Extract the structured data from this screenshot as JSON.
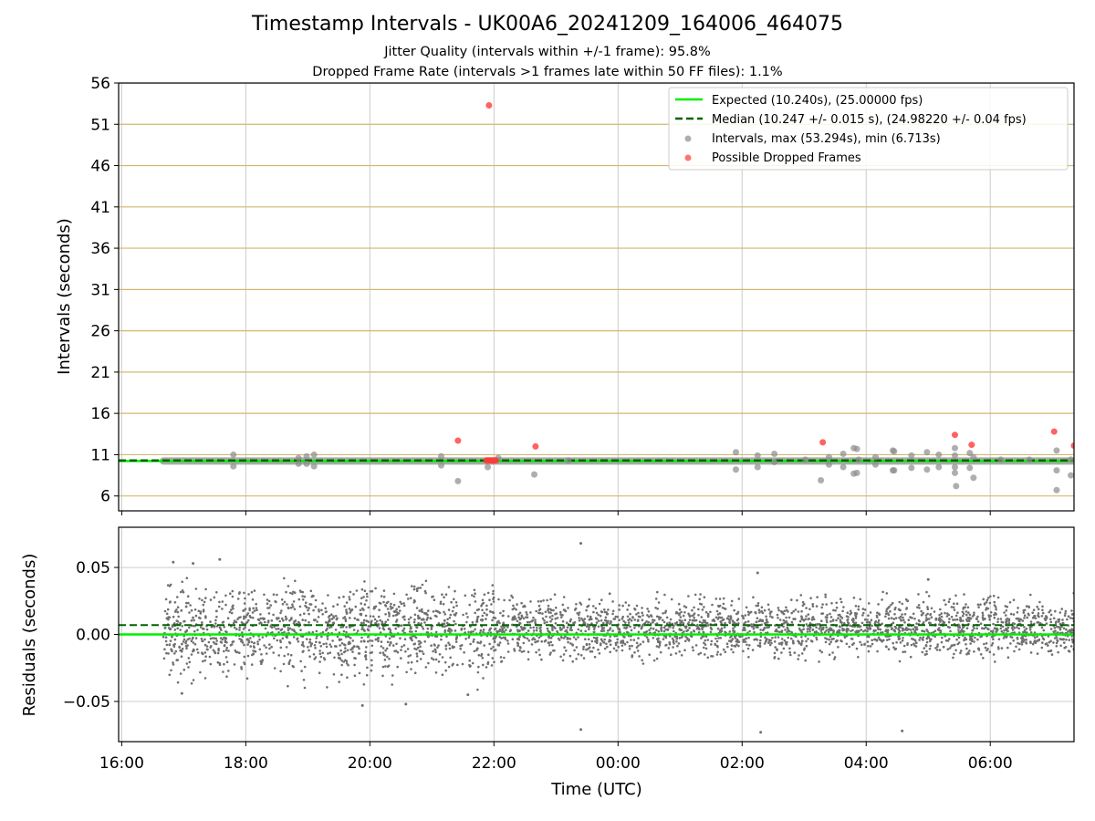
{
  "header": {
    "title": "Timestamp Intervals - UK00A6_20241209_164006_464075",
    "subtitle_jitter": "Jitter Quality (intervals within +/-1 frame): 95.8%",
    "subtitle_dropped": "Dropped Frame Rate (intervals >1 frames late within 50 FF files): 1.1%"
  },
  "colors": {
    "expected": "#00ee00",
    "median": "#006400",
    "intervals": "#8c8c8c",
    "dropped": "#ff3b3b",
    "band_grid": "#d2b96e",
    "grid": "#cccccc",
    "residual_points": "#707070"
  },
  "chart_data": [
    {
      "type": "scatter",
      "panel": "intervals",
      "title": "Timestamp Intervals - UK00A6_20241209_164006_464075",
      "ylabel": "Intervals (seconds)",
      "xlabel": "",
      "x_units": "hours since 2024-12-09 00:00 UTC",
      "xlim": [
        15.95,
        31.35
      ],
      "ylim": [
        4.2,
        56
      ],
      "yticks": [
        "6",
        "11",
        "16",
        "21",
        "26",
        "31",
        "36",
        "41",
        "46",
        "51",
        "56"
      ],
      "grid": true,
      "legend_position": "upper right",
      "legend": [
        "Expected (10.240s), (25.00000 fps)",
        "Median (10.247 +/- 0.015 s), (24.98220 +/- 0.04 fps)",
        "Intervals, max (53.294s), min (6.713s)",
        "Possible Dropped Frames"
      ],
      "expected_line": 10.24,
      "median_line": 10.247,
      "series": [
        {
          "name": "Intervals, max (53.294s), min (6.713s)",
          "style": "baseline band",
          "x_range": [
            16.67,
            31.35
          ],
          "y": 10.24,
          "spread": 0.03
        },
        {
          "name": "Intervals, max (53.294s), min (6.713s)",
          "points": [
            [
              17.8,
              11.0
            ],
            [
              17.8,
              9.6
            ],
            [
              18.85,
              10.6
            ],
            [
              18.85,
              9.9
            ],
            [
              18.98,
              10.8
            ],
            [
              18.98,
              9.9
            ],
            [
              19.1,
              11.0
            ],
            [
              19.1,
              9.6
            ],
            [
              21.15,
              10.8
            ],
            [
              21.15,
              9.7
            ],
            [
              21.42,
              7.8
            ],
            [
              21.9,
              9.5
            ],
            [
              22.07,
              10.6
            ],
            [
              22.65,
              8.6
            ],
            [
              23.2,
              10.3
            ],
            [
              25.9,
              11.3
            ],
            [
              25.9,
              9.2
            ],
            [
              26.25,
              10.9
            ],
            [
              26.25,
              9.5
            ],
            [
              26.52,
              11.1
            ],
            [
              26.52,
              10.1
            ],
            [
              27.02,
              10.4
            ],
            [
              27.27,
              7.9
            ],
            [
              27.4,
              10.7
            ],
            [
              27.4,
              9.8
            ],
            [
              27.63,
              11.1
            ],
            [
              27.63,
              9.5
            ],
            [
              27.8,
              11.8
            ],
            [
              27.85,
              11.7
            ],
            [
              27.8,
              8.7
            ],
            [
              27.85,
              8.8
            ],
            [
              27.88,
              10.4
            ],
            [
              28.15,
              10.7
            ],
            [
              28.15,
              9.8
            ],
            [
              28.43,
              11.5
            ],
            [
              28.45,
              11.4
            ],
            [
              28.43,
              9.1
            ],
            [
              28.45,
              9.1
            ],
            [
              28.73,
              10.9
            ],
            [
              28.73,
              9.4
            ],
            [
              28.98,
              11.3
            ],
            [
              28.98,
              9.2
            ],
            [
              29.17,
              11.0
            ],
            [
              29.17,
              9.5
            ],
            [
              29.43,
              11.8
            ],
            [
              29.43,
              10.9
            ],
            [
              29.43,
              9.5
            ],
            [
              29.43,
              8.8
            ],
            [
              29.45,
              7.2
            ],
            [
              29.67,
              11.2
            ],
            [
              29.67,
              9.4
            ],
            [
              29.73,
              10.7
            ],
            [
              29.73,
              8.2
            ],
            [
              30.17,
              10.4
            ],
            [
              30.63,
              10.4
            ],
            [
              31.07,
              11.5
            ],
            [
              31.07,
              9.1
            ],
            [
              31.07,
              6.71
            ],
            [
              31.3,
              10.4
            ],
            [
              31.3,
              8.5
            ]
          ]
        },
        {
          "name": "Possible Dropped Frames",
          "points": [
            [
              21.42,
              12.7
            ],
            [
              21.88,
              10.3
            ],
            [
              21.9,
              10.3
            ],
            [
              21.93,
              10.3
            ],
            [
              21.95,
              10.3
            ],
            [
              21.98,
              10.3
            ],
            [
              22.0,
              10.3
            ],
            [
              22.03,
              10.3
            ],
            [
              21.92,
              53.294
            ],
            [
              22.67,
              12.0
            ],
            [
              27.3,
              12.5
            ],
            [
              29.43,
              13.4
            ],
            [
              29.7,
              12.2
            ],
            [
              31.03,
              13.8
            ],
            [
              31.35,
              12.1
            ]
          ]
        }
      ]
    },
    {
      "type": "scatter",
      "panel": "residuals",
      "ylabel": "Residuals (seconds)",
      "xlabel": "Time (UTC)",
      "xlim": [
        15.95,
        31.35
      ],
      "ylim": [
        -0.08,
        0.08
      ],
      "yticks": [
        "−0.05",
        "0.00",
        "0.05"
      ],
      "xticks": [
        "16:00",
        "18:00",
        "20:00",
        "22:00",
        "00:00",
        "02:00",
        "04:00",
        "06:00"
      ],
      "grid": true,
      "expected_line": 0.0,
      "median_line": 0.007,
      "series": [
        {
          "name": "Residuals",
          "style": "dense noise cloud",
          "x_range": [
            16.67,
            31.35
          ],
          "spread_before_22h": [
            -0.045,
            0.05
          ],
          "spread_after_22h": [
            -0.025,
            0.035
          ],
          "outliers": [
            [
              16.83,
              0.054
            ],
            [
              16.97,
              -0.044
            ],
            [
              17.15,
              0.053
            ],
            [
              17.58,
              0.056
            ],
            [
              19.88,
              -0.053
            ],
            [
              20.58,
              -0.052
            ],
            [
              21.58,
              -0.045
            ],
            [
              23.4,
              0.068
            ],
            [
              23.4,
              -0.071
            ],
            [
              26.3,
              -0.073
            ],
            [
              26.25,
              0.046
            ],
            [
              28.58,
              -0.072
            ],
            [
              29.0,
              0.041
            ]
          ]
        }
      ]
    }
  ]
}
